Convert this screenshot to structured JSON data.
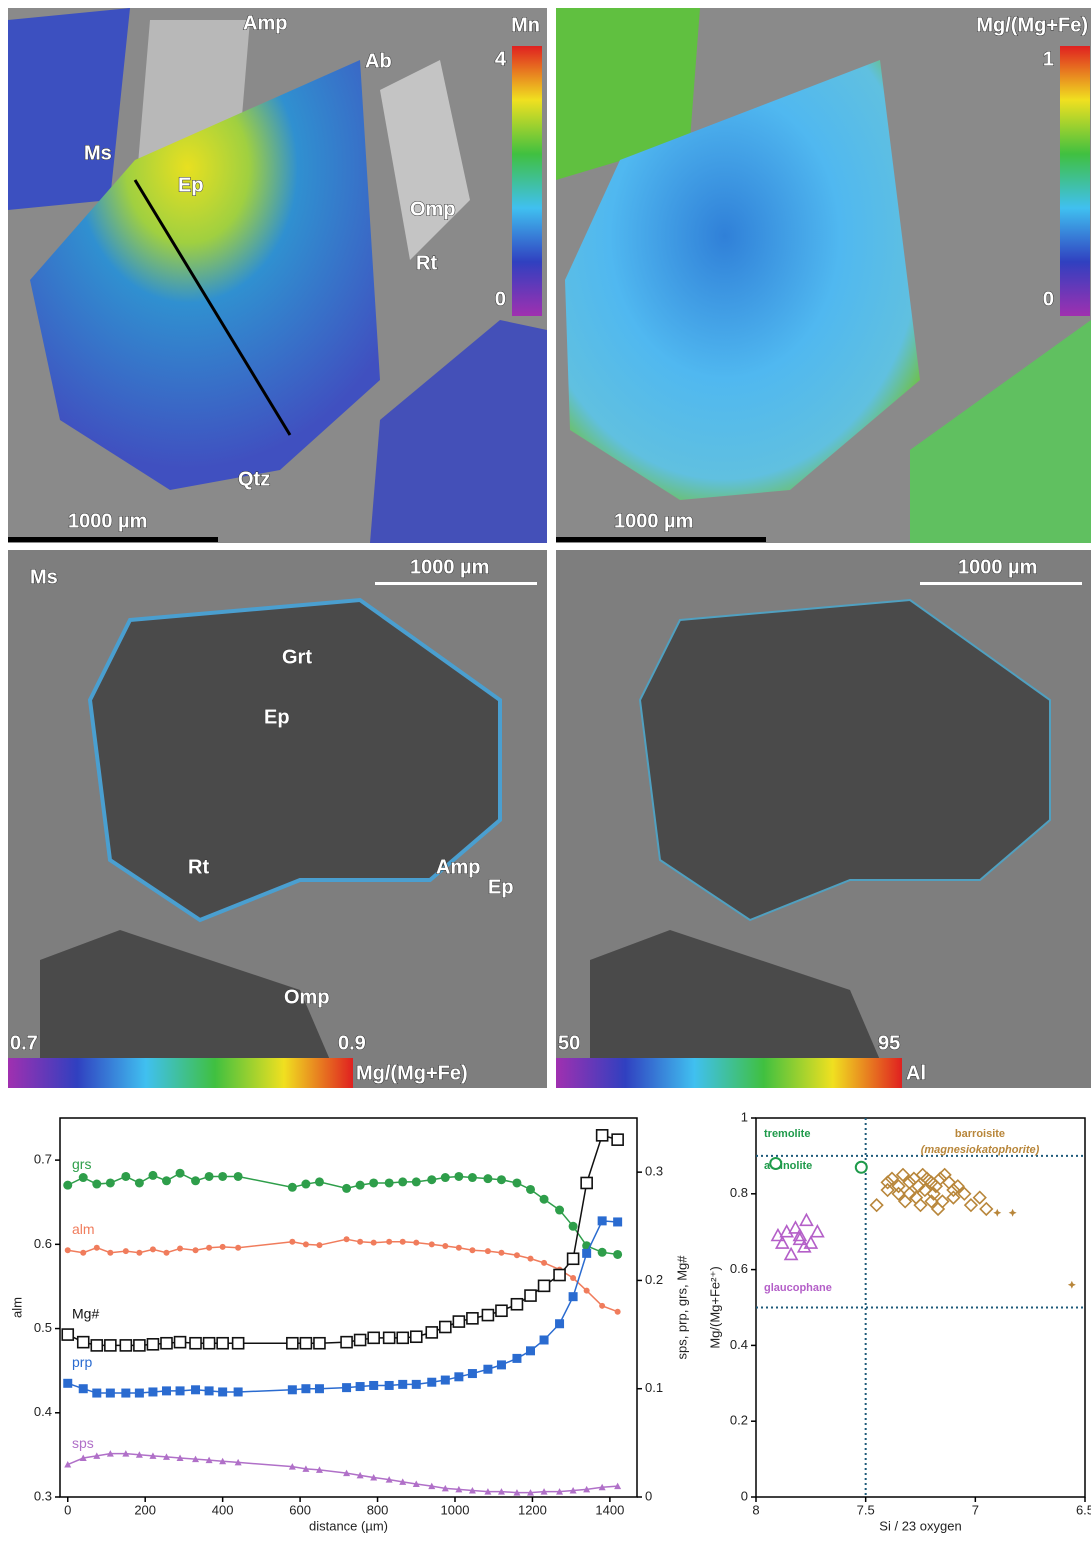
{
  "figure_panels": [
    {
      "colorbar_title": "Mn",
      "colorbar_max": "4",
      "colorbar_min": "0",
      "scale_bar": "1000 µm",
      "labels": [
        "Amp",
        "Ab",
        "Ms",
        "Ep",
        "Omp",
        "Rt",
        "Qtz"
      ]
    },
    {
      "colorbar_title": "Mg/(Mg+Fe)",
      "colorbar_max": "1",
      "colorbar_min": "0",
      "scale_bar": "1000 µm"
    },
    {
      "colorbar_title": "Mg/(Mg+Fe)",
      "colorbar_max": "0.9",
      "colorbar_min": "0.7",
      "scale_bar": "1000 µm",
      "labels": [
        "Ms",
        "Grt",
        "Ep",
        "Rt",
        "Amp",
        "Ep",
        "Omp"
      ]
    },
    {
      "colorbar_title": "Al",
      "colorbar_max": "95",
      "colorbar_min": "50",
      "scale_bar": "1000 µm"
    }
  ],
  "chart_data": [
    {
      "type": "line",
      "x_label": "distance (µm)",
      "y_label": "alm",
      "y2_label": "sps, prp, grs, Mg#",
      "x": [
        0,
        40,
        75,
        110,
        150,
        185,
        220,
        255,
        290,
        330,
        365,
        400,
        440,
        580,
        615,
        650,
        720,
        755,
        790,
        830,
        865,
        900,
        940,
        975,
        1010,
        1045,
        1085,
        1120,
        1160,
        1195,
        1230,
        1270,
        1305,
        1340,
        1380,
        1420
      ],
      "xlim": [
        -20,
        1470
      ],
      "xticks": [
        0,
        200,
        400,
        600,
        800,
        1000,
        1200,
        1400
      ],
      "ylim": [
        0.3,
        0.75
      ],
      "yticks": [
        0.3,
        0.4,
        0.5,
        0.6,
        0.7
      ],
      "y2lim": [
        0,
        0.35
      ],
      "y2ticks": [
        0,
        0.1,
        0.2,
        0.3
      ],
      "series": [
        {
          "name": "grs",
          "color": "#2e9e4a",
          "axis": "y2",
          "marker": "circle",
          "values": [
            0.288,
            0.295,
            0.289,
            0.29,
            0.296,
            0.29,
            0.297,
            0.292,
            0.299,
            0.292,
            0.296,
            0.296,
            0.296,
            0.286,
            0.289,
            0.291,
            0.285,
            0.288,
            0.29,
            0.29,
            0.291,
            0.291,
            0.293,
            0.295,
            0.296,
            0.295,
            0.294,
            0.293,
            0.29,
            0.284,
            0.275,
            0.265,
            0.25,
            0.232,
            0.226,
            0.224
          ]
        },
        {
          "name": "alm",
          "color": "#f07c5c",
          "axis": "y",
          "marker": "dot",
          "values": [
            0.593,
            0.59,
            0.596,
            0.59,
            0.592,
            0.59,
            0.594,
            0.59,
            0.595,
            0.593,
            0.596,
            0.597,
            0.596,
            0.603,
            0.6,
            0.599,
            0.606,
            0.603,
            0.602,
            0.603,
            0.603,
            0.602,
            0.6,
            0.598,
            0.596,
            0.593,
            0.592,
            0.59,
            0.587,
            0.583,
            0.578,
            0.57,
            0.56,
            0.545,
            0.527,
            0.52
          ]
        },
        {
          "name": "Mg#",
          "color": "#111111",
          "axis": "y2",
          "marker": "open-square",
          "values": [
            0.15,
            0.143,
            0.14,
            0.14,
            0.14,
            0.14,
            0.141,
            0.142,
            0.143,
            0.142,
            0.142,
            0.142,
            0.142,
            0.142,
            0.142,
            0.142,
            0.143,
            0.145,
            0.147,
            0.147,
            0.147,
            0.148,
            0.152,
            0.157,
            0.162,
            0.165,
            0.168,
            0.172,
            0.178,
            0.186,
            0.195,
            0.205,
            0.22,
            0.29,
            0.334,
            0.33
          ]
        },
        {
          "name": "prp",
          "color": "#2a6bd0",
          "axis": "y2",
          "marker": "square",
          "values": [
            0.105,
            0.1,
            0.096,
            0.096,
            0.096,
            0.096,
            0.097,
            0.098,
            0.098,
            0.099,
            0.098,
            0.097,
            0.097,
            0.099,
            0.1,
            0.1,
            0.101,
            0.102,
            0.103,
            0.103,
            0.104,
            0.104,
            0.106,
            0.108,
            0.111,
            0.114,
            0.118,
            0.122,
            0.128,
            0.135,
            0.145,
            0.16,
            0.185,
            0.225,
            0.255,
            0.254
          ]
        },
        {
          "name": "sps",
          "color": "#b070c8",
          "axis": "y2",
          "marker": "triangle",
          "values": [
            0.03,
            0.036,
            0.038,
            0.04,
            0.04,
            0.039,
            0.038,
            0.037,
            0.036,
            0.035,
            0.034,
            0.033,
            0.032,
            0.028,
            0.026,
            0.025,
            0.022,
            0.02,
            0.018,
            0.016,
            0.014,
            0.012,
            0.01,
            0.008,
            0.007,
            0.006,
            0.005,
            0.005,
            0.004,
            0.004,
            0.005,
            0.005,
            0.006,
            0.007,
            0.009,
            0.01
          ]
        }
      ]
    },
    {
      "type": "scatter",
      "x_label": "Si / 23 oxygen",
      "y_label": "Mg/(Mg+Fe²⁺)",
      "xlim": [
        8,
        6.5
      ],
      "xticks": [
        8,
        7.5,
        7,
        6.5
      ],
      "ylim": [
        0,
        1
      ],
      "yticks": [
        0,
        0.2,
        0.4,
        0.6,
        0.8,
        1
      ],
      "hlines": [
        0.9,
        0.5
      ],
      "vlines": [
        7.5
      ],
      "annotations": [
        "tremolite",
        "actinolite",
        "glaucophane",
        "barroisite",
        "(magnesiokatophorite)"
      ],
      "series": [
        {
          "color": "#1e9a4a",
          "marker": "open-circle",
          "x": [
            7.91,
            7.52
          ],
          "values": [
            0.88,
            0.87
          ]
        },
        {
          "color": "#b45fc8",
          "marker": "open-triangle",
          "x": [
            7.9,
            7.86,
            7.82,
            7.8,
            7.77,
            7.75,
            7.72,
            7.88,
            7.84,
            7.78,
            7.8
          ],
          "values": [
            0.69,
            0.7,
            0.71,
            0.68,
            0.73,
            0.67,
            0.7,
            0.67,
            0.64,
            0.66,
            0.69
          ]
        },
        {
          "color": "#b8863a",
          "marker": "open-diamond",
          "x": [
            7.45,
            7.4,
            7.38,
            7.35,
            7.33,
            7.3,
            7.28,
            7.26,
            7.24,
            7.22,
            7.2,
            7.18,
            7.16,
            7.14,
            7.12,
            7.1,
            7.3,
            7.27,
            7.23,
            7.19,
            7.15,
            7.35,
            7.25,
            7.2,
            7.1,
            7.05,
            7.02,
            6.98,
            6.95,
            7.4,
            7.32,
            7.17,
            7.08
          ],
          "values": [
            0.77,
            0.83,
            0.84,
            0.82,
            0.85,
            0.83,
            0.84,
            0.82,
            0.85,
            0.84,
            0.83,
            0.82,
            0.84,
            0.85,
            0.83,
            0.81,
            0.8,
            0.79,
            0.81,
            0.8,
            0.78,
            0.8,
            0.77,
            0.78,
            0.79,
            0.8,
            0.77,
            0.79,
            0.76,
            0.81,
            0.78,
            0.76,
            0.82
          ]
        },
        {
          "color": "#b8863a",
          "marker": "star",
          "x": [
            6.9,
            6.83,
            6.56
          ],
          "values": [
            0.75,
            0.75,
            0.56
          ]
        }
      ]
    }
  ]
}
